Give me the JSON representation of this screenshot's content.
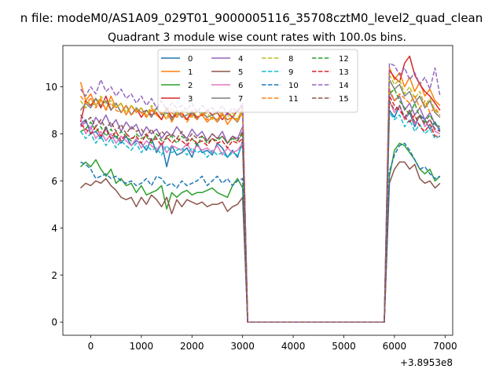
{
  "figure": {
    "suptitle": "n file: modeM0/AS1A09_029T01_9000005116_35708cztM0_level2_quad_clean",
    "offset_label": "+3.8953e8"
  },
  "chart_data": {
    "type": "line",
    "title": "Quadrant 3 module wise count rates with 100.0s bins.",
    "xlabel": "",
    "ylabel": "",
    "x_offset": 389530000,
    "xlim": [
      -550,
      7150
    ],
    "ylim": [
      -0.56,
      11.75
    ],
    "xticks": [
      0,
      1000,
      2000,
      3000,
      4000,
      5000,
      6000,
      7000
    ],
    "yticks": [
      0,
      2,
      4,
      6,
      8,
      10
    ],
    "grid": false,
    "legend": {
      "placement": "upper center",
      "columns": 4
    },
    "x": [
      -200,
      -100,
      0,
      100,
      200,
      300,
      400,
      500,
      600,
      700,
      800,
      900,
      1000,
      1100,
      1200,
      1300,
      1400,
      1500,
      1600,
      1700,
      1800,
      1900,
      2000,
      2100,
      2200,
      2300,
      2400,
      2500,
      2600,
      2700,
      2800,
      2900,
      3000,
      3100,
      3200,
      3300,
      3400,
      3500,
      3600,
      3700,
      3800,
      3900,
      4000,
      4100,
      4200,
      4300,
      4400,
      4500,
      4600,
      4700,
      4800,
      4900,
      5000,
      5100,
      5200,
      5300,
      5400,
      5500,
      5600,
      5700,
      5800,
      5900,
      6000,
      6100,
      6200,
      6300,
      6400,
      6500,
      6600,
      6700,
      6800,
      6900
    ],
    "series": [
      {
        "name": "0",
        "color": "#1f77b4",
        "style": "solid",
        "values": [
          8.4,
          8.6,
          8.0,
          8.1,
          7.8,
          8.3,
          7.8,
          7.9,
          7.6,
          7.9,
          7.5,
          7.7,
          7.6,
          7.3,
          7.8,
          7.2,
          7.6,
          6.6,
          7.5,
          7.1,
          7.2,
          7.4,
          7.0,
          7.6,
          7.2,
          7.3,
          7.1,
          7.6,
          7.4,
          7.0,
          7.3,
          7.0,
          7.7,
          0,
          0,
          0,
          0,
          0,
          0,
          0,
          0,
          0,
          0,
          0,
          0,
          0,
          0,
          0,
          0,
          0,
          0,
          0,
          0,
          0,
          0,
          0,
          0,
          0,
          0,
          0,
          0,
          9.0,
          8.7,
          9.2,
          8.6,
          8.9,
          8.3,
          8.8,
          8.6,
          8.2,
          8.5,
          8.1
        ]
      },
      {
        "name": "1",
        "color": "#ff7f0e",
        "style": "solid",
        "values": [
          10.2,
          9.4,
          9.7,
          9.2,
          9.5,
          9.0,
          9.6,
          9.1,
          9.3,
          8.8,
          9.2,
          8.9,
          9.1,
          8.7,
          9.0,
          8.8,
          8.6,
          9.1,
          8.5,
          8.9,
          8.8,
          8.6,
          9.0,
          8.7,
          8.8,
          8.5,
          8.7,
          8.6,
          8.9,
          8.4,
          8.7,
          8.6,
          9.1,
          0,
          0,
          0,
          0,
          0,
          0,
          0,
          0,
          0,
          0,
          0,
          0,
          0,
          0,
          0,
          0,
          0,
          0,
          0,
          0,
          0,
          0,
          0,
          0,
          0,
          0,
          0,
          0,
          10.8,
          10.3,
          10.6,
          10.0,
          10.4,
          9.8,
          10.2,
          9.6,
          9.9,
          9.4,
          9.2
        ]
      },
      {
        "name": "2",
        "color": "#2ca02c",
        "style": "solid",
        "values": [
          6.6,
          6.8,
          6.6,
          6.9,
          6.5,
          6.2,
          6.5,
          5.9,
          6.1,
          5.8,
          5.9,
          5.5,
          5.8,
          5.4,
          5.5,
          5.6,
          5.8,
          4.8,
          5.5,
          5.3,
          5.5,
          5.6,
          5.4,
          5.5,
          5.5,
          5.6,
          5.7,
          5.5,
          5.4,
          5.3,
          5.8,
          6.1,
          5.7,
          0,
          0,
          0,
          0,
          0,
          0,
          0,
          0,
          0,
          0,
          0,
          0,
          0,
          0,
          0,
          0,
          0,
          0,
          0,
          0,
          0,
          0,
          0,
          0,
          0,
          0,
          0,
          0,
          6.2,
          7.3,
          7.6,
          7.5,
          7.2,
          6.9,
          6.5,
          6.3,
          6.5,
          6.0,
          6.2
        ]
      },
      {
        "name": "3",
        "color": "#d62728",
        "style": "solid",
        "values": [
          8.5,
          9.4,
          9.2,
          9.5,
          9.1,
          9.6,
          9.0,
          9.3,
          8.9,
          9.2,
          8.8,
          9.1,
          8.7,
          9.0,
          8.8,
          8.9,
          8.6,
          9.1,
          8.7,
          8.8,
          8.9,
          8.6,
          8.9,
          8.7,
          8.8,
          9.0,
          8.8,
          8.9,
          8.6,
          8.9,
          8.7,
          9.0,
          9.2,
          0,
          0,
          0,
          0,
          0,
          0,
          0,
          0,
          0,
          0,
          0,
          0,
          0,
          0,
          0,
          0,
          0,
          0,
          0,
          0,
          0,
          0,
          0,
          0,
          0,
          0,
          0,
          0,
          10.7,
          10.4,
          10.2,
          11.0,
          11.3,
          10.5,
          10.1,
          9.8,
          9.6,
          9.3,
          9.0
        ]
      },
      {
        "name": "4",
        "color": "#9467bd",
        "style": "solid",
        "values": [
          8.3,
          8.5,
          8.2,
          8.7,
          8.4,
          8.8,
          8.3,
          8.6,
          8.1,
          8.5,
          8.2,
          8.4,
          7.9,
          8.3,
          8.0,
          8.2,
          7.8,
          8.1,
          7.9,
          8.3,
          8.0,
          7.8,
          8.2,
          7.9,
          8.1,
          7.7,
          8.0,
          7.8,
          8.1,
          7.6,
          7.9,
          7.8,
          8.3,
          0,
          0,
          0,
          0,
          0,
          0,
          0,
          0,
          0,
          0,
          0,
          0,
          0,
          0,
          0,
          0,
          0,
          0,
          0,
          0,
          0,
          0,
          0,
          0,
          0,
          0,
          0,
          0,
          9.8,
          9.4,
          9.6,
          9.0,
          9.3,
          8.8,
          9.1,
          8.6,
          8.9,
          8.4,
          8.2
        ]
      },
      {
        "name": "5",
        "color": "#8c564b",
        "style": "solid",
        "values": [
          5.7,
          5.9,
          5.8,
          6.0,
          5.9,
          6.1,
          5.8,
          5.6,
          5.3,
          5.2,
          5.3,
          4.9,
          5.3,
          5.0,
          5.4,
          5.2,
          4.9,
          5.3,
          4.6,
          5.2,
          4.9,
          5.2,
          5.1,
          5.0,
          5.1,
          4.9,
          5.0,
          5.0,
          5.1,
          4.7,
          4.9,
          5.0,
          5.3,
          0,
          0,
          0,
          0,
          0,
          0,
          0,
          0,
          0,
          0,
          0,
          0,
          0,
          0,
          0,
          0,
          0,
          0,
          0,
          0,
          0,
          0,
          0,
          0,
          0,
          0,
          0,
          0,
          5.9,
          6.5,
          6.8,
          6.8,
          6.5,
          6.7,
          6.1,
          5.9,
          6.0,
          5.7,
          5.9
        ]
      },
      {
        "name": "6",
        "color": "#e377c2",
        "style": "solid",
        "values": [
          8.7,
          8.0,
          8.3,
          7.8,
          8.1,
          7.7,
          8.0,
          7.6,
          7.9,
          7.7,
          7.5,
          7.8,
          7.4,
          7.7,
          7.5,
          7.3,
          7.6,
          7.2,
          7.5,
          7.4,
          7.3,
          7.6,
          7.2,
          7.5,
          7.3,
          7.4,
          7.2,
          7.5,
          7.1,
          7.4,
          7.2,
          7.3,
          7.6,
          0,
          0,
          0,
          0,
          0,
          0,
          0,
          0,
          0,
          0,
          0,
          0,
          0,
          0,
          0,
          0,
          0,
          0,
          0,
          0,
          0,
          0,
          0,
          0,
          0,
          0,
          0,
          0,
          9.4,
          8.9,
          9.2,
          8.6,
          9.0,
          8.4,
          8.8,
          8.3,
          8.6,
          8.1,
          8.0
        ]
      },
      {
        "name": "7",
        "color": "#7f7f7f",
        "style": "solid",
        "values": [
          9.0,
          9.3,
          9.1,
          9.5,
          9.2,
          9.4,
          9.0,
          9.3,
          8.9,
          9.2,
          8.8,
          9.1,
          8.9,
          9.0,
          8.7,
          9.1,
          8.8,
          8.9,
          8.6,
          9.0,
          8.7,
          8.8,
          8.9,
          8.6,
          8.9,
          8.7,
          8.8,
          8.5,
          8.8,
          8.6,
          8.7,
          8.5,
          9.0,
          0,
          0,
          0,
          0,
          0,
          0,
          0,
          0,
          0,
          0,
          0,
          0,
          0,
          0,
          0,
          0,
          0,
          0,
          0,
          0,
          0,
          0,
          0,
          0,
          0,
          0,
          0,
          0,
          10.3,
          9.9,
          10.1,
          9.6,
          9.8,
          9.3,
          9.6,
          9.1,
          9.4,
          8.9,
          8.7
        ]
      },
      {
        "name": "8",
        "color": "#bcbd22",
        "style": "dashed",
        "values": [
          9.4,
          9.1,
          9.5,
          9.2,
          9.6,
          9.3,
          9.4,
          9.1,
          9.3,
          8.9,
          9.2,
          9.0,
          9.1,
          8.8,
          9.2,
          8.9,
          9.0,
          8.7,
          9.1,
          8.8,
          9.0,
          8.9,
          8.7,
          9.0,
          8.8,
          8.9,
          8.6,
          9.0,
          8.8,
          8.7,
          8.9,
          8.6,
          9.0,
          0,
          0,
          0,
          0,
          0,
          0,
          0,
          0,
          0,
          0,
          0,
          0,
          0,
          0,
          0,
          0,
          0,
          0,
          0,
          0,
          0,
          0,
          0,
          0,
          0,
          0,
          0,
          0,
          10.5,
          10.1,
          10.3,
          9.7,
          10.0,
          9.5,
          9.8,
          9.2,
          9.5,
          9.0,
          8.8
        ]
      },
      {
        "name": "9",
        "color": "#17becf",
        "style": "dashed",
        "values": [
          8.1,
          7.8,
          8.0,
          7.6,
          7.9,
          7.5,
          7.8,
          7.4,
          7.7,
          7.5,
          7.3,
          7.6,
          7.2,
          7.5,
          7.3,
          7.4,
          7.1,
          7.5,
          7.2,
          7.3,
          7.4,
          7.1,
          7.4,
          7.2,
          7.3,
          7.0,
          7.3,
          7.1,
          7.2,
          7.0,
          7.2,
          7.1,
          7.5,
          0,
          0,
          0,
          0,
          0,
          0,
          0,
          0,
          0,
          0,
          0,
          0,
          0,
          0,
          0,
          0,
          0,
          0,
          0,
          0,
          0,
          0,
          0,
          0,
          0,
          0,
          0,
          0,
          8.9,
          8.6,
          8.8,
          8.3,
          8.6,
          8.1,
          8.4,
          8.0,
          8.2,
          7.8,
          7.9
        ]
      },
      {
        "name": "10",
        "color": "#1f77b4",
        "style": "dashed",
        "values": [
          6.8,
          6.7,
          6.5,
          6.1,
          6.2,
          6.3,
          6.1,
          6.2,
          6.0,
          5.9,
          6.0,
          5.8,
          5.9,
          6.1,
          5.8,
          6.2,
          6.1,
          5.8,
          5.9,
          5.7,
          6.0,
          5.8,
          5.9,
          6.0,
          6.2,
          5.8,
          6.0,
          6.2,
          5.9,
          6.1,
          5.8,
          6.0,
          6.1,
          0,
          0,
          0,
          0,
          0,
          0,
          0,
          0,
          0,
          0,
          0,
          0,
          0,
          0,
          0,
          0,
          0,
          0,
          0,
          0,
          0,
          0,
          0,
          0,
          0,
          0,
          0,
          0,
          6.4,
          7.1,
          7.5,
          7.6,
          7.3,
          6.9,
          6.5,
          6.6,
          6.3,
          6.1,
          6.2
        ]
      },
      {
        "name": "11",
        "color": "#ff7f0e",
        "style": "dashed",
        "values": [
          9.6,
          9.3,
          9.5,
          9.1,
          9.4,
          9.0,
          9.3,
          9.0,
          8.9,
          9.2,
          8.8,
          9.0,
          8.9,
          8.7,
          9.1,
          8.8,
          8.9,
          8.6,
          8.9,
          8.7,
          8.9,
          8.5,
          8.8,
          8.6,
          8.9,
          8.6,
          8.7,
          8.5,
          8.8,
          8.6,
          8.7,
          8.5,
          8.9,
          0,
          0,
          0,
          0,
          0,
          0,
          0,
          0,
          0,
          0,
          0,
          0,
          0,
          0,
          0,
          0,
          0,
          0,
          0,
          0,
          0,
          0,
          0,
          0,
          0,
          0,
          0,
          0,
          9.9,
          9.4,
          9.7,
          9.5,
          9.3,
          9.6,
          9.1,
          9.4,
          8.9,
          9.1,
          8.8
        ]
      },
      {
        "name": "12",
        "color": "#2ca02c",
        "style": "dashed",
        "values": [
          8.1,
          8.2,
          8.5,
          8.1,
          8.3,
          7.9,
          8.2,
          7.8,
          8.1,
          7.9,
          7.7,
          8.0,
          7.8,
          7.9,
          7.6,
          8.0,
          7.7,
          7.8,
          7.9,
          7.6,
          7.9,
          7.7,
          7.8,
          7.5,
          7.9,
          7.6,
          7.8,
          7.7,
          7.9,
          7.6,
          7.8,
          7.7,
          8.0,
          0,
          0,
          0,
          0,
          0,
          0,
          0,
          0,
          0,
          0,
          0,
          0,
          0,
          0,
          0,
          0,
          0,
          0,
          0,
          0,
          0,
          0,
          0,
          0,
          0,
          0,
          0,
          0,
          9.7,
          9.9,
          9.4,
          9.1,
          8.8,
          9.3,
          8.7,
          8.5,
          8.8,
          8.4,
          8.3
        ]
      },
      {
        "name": "13",
        "color": "#d62728",
        "style": "dashed",
        "values": [
          8.4,
          8.2,
          8.0,
          8.3,
          7.9,
          8.2,
          7.8,
          8.1,
          7.7,
          8.0,
          7.8,
          7.9,
          7.6,
          8.0,
          7.7,
          7.8,
          7.5,
          7.9,
          7.6,
          7.8,
          7.7,
          7.5,
          7.8,
          7.6,
          7.7,
          7.5,
          7.8,
          7.6,
          7.7,
          7.4,
          7.7,
          7.6,
          7.8,
          0,
          0,
          0,
          0,
          0,
          0,
          0,
          0,
          0,
          0,
          0,
          0,
          0,
          0,
          0,
          0,
          0,
          0,
          0,
          0,
          0,
          0,
          0,
          0,
          0,
          0,
          0,
          0,
          9.6,
          9.2,
          9.0,
          8.7,
          8.5,
          8.8,
          8.3,
          8.1,
          8.4,
          7.9,
          7.9
        ]
      },
      {
        "name": "14",
        "color": "#9467bd",
        "style": "dashed",
        "values": [
          9.9,
          9.6,
          10.0,
          9.7,
          10.3,
          9.8,
          10.0,
          9.6,
          9.9,
          9.5,
          9.7,
          9.3,
          9.6,
          9.2,
          9.5,
          9.1,
          9.4,
          9.0,
          9.3,
          9.1,
          9.2,
          9.0,
          9.3,
          8.9,
          9.2,
          9.0,
          9.1,
          8.9,
          9.2,
          8.8,
          9.1,
          8.9,
          9.3,
          0,
          0,
          0,
          0,
          0,
          0,
          0,
          0,
          0,
          0,
          0,
          0,
          0,
          0,
          0,
          0,
          0,
          0,
          0,
          0,
          0,
          0,
          0,
          0,
          0,
          0,
          0,
          0,
          11.0,
          10.9,
          10.5,
          10.8,
          10.3,
          10.6,
          10.1,
          10.4,
          9.9,
          10.8,
          9.6
        ]
      },
      {
        "name": "15",
        "color": "#8c564b",
        "style": "dashed",
        "values": [
          8.8,
          8.5,
          8.7,
          8.3,
          8.6,
          8.2,
          8.5,
          8.1,
          8.4,
          8.0,
          8.3,
          8.1,
          8.2,
          7.9,
          8.2,
          7.8,
          8.1,
          7.9,
          8.0,
          7.8,
          8.1,
          7.7,
          8.0,
          7.8,
          7.9,
          7.7,
          8.0,
          7.8,
          7.9,
          7.6,
          7.9,
          7.7,
          8.1,
          0,
          0,
          0,
          0,
          0,
          0,
          0,
          0,
          0,
          0,
          0,
          0,
          0,
          0,
          0,
          0,
          0,
          0,
          0,
          0,
          0,
          0,
          0,
          0,
          0,
          0,
          0,
          0,
          9.4,
          9.0,
          9.2,
          8.7,
          9.0,
          8.5,
          8.8,
          8.4,
          8.6,
          8.2,
          8.1
        ]
      }
    ]
  }
}
